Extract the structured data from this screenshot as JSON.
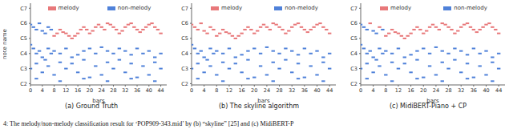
{
  "chart_data": [
    {
      "type": "scatter",
      "title": "(a) Ground Truth",
      "x_label": "bars",
      "y_label": "note name",
      "xlim": [
        0,
        46
      ],
      "xticks": [
        0,
        4,
        8,
        12,
        16,
        20,
        24,
        28,
        32,
        36,
        40,
        44
      ],
      "ylim": [
        35,
        100
      ],
      "yticks": [
        {
          "value": 36,
          "label": "C2"
        },
        {
          "value": 48,
          "label": "C3"
        },
        {
          "value": 60,
          "label": "C4"
        },
        {
          "value": 72,
          "label": "C5"
        },
        {
          "value": 84,
          "label": "C6"
        },
        {
          "value": 96,
          "label": "C7"
        }
      ],
      "grid": false,
      "legend": "top",
      "series": [
        {
          "name": "melody",
          "color": "#e8787a",
          "marker": "dash",
          "x": [
            8,
            9,
            10,
            11,
            12,
            13,
            14,
            15,
            16,
            17,
            18,
            19,
            20,
            21,
            22,
            23,
            24,
            25,
            26,
            27,
            28,
            29,
            30,
            31,
            32,
            33,
            34,
            35,
            36,
            37,
            38,
            39,
            40,
            41,
            42,
            43,
            44
          ],
          "values": [
            74,
            76,
            79,
            77,
            76,
            74,
            72,
            74,
            76,
            79,
            81,
            79,
            76,
            78,
            81,
            83,
            81,
            79,
            84,
            83,
            81,
            79,
            76,
            78,
            81,
            83,
            84,
            81,
            79,
            77,
            79,
            81,
            83,
            84,
            81,
            79,
            76
          ]
        },
        {
          "name": "non-melody",
          "color": "#4f81d9",
          "marker": "dash",
          "x": [
            0,
            1,
            2,
            3,
            4,
            5,
            6,
            7,
            0,
            1,
            2,
            3,
            4,
            5,
            6,
            7,
            8,
            10,
            12,
            14,
            16,
            18,
            20,
            22,
            24,
            26,
            28,
            30,
            32,
            34,
            36,
            38,
            40,
            42,
            44,
            0,
            4,
            8,
            12,
            16,
            20,
            24,
            28,
            32,
            36,
            40,
            44,
            2,
            6,
            10,
            14,
            18,
            22,
            26,
            30,
            34,
            38,
            42,
            2,
            10,
            18,
            26,
            34,
            42
          ],
          "values": [
            83,
            81,
            79,
            84,
            78,
            76,
            81,
            79,
            67,
            64,
            60,
            62,
            57,
            55,
            64,
            60,
            62,
            60,
            64,
            57,
            59,
            62,
            64,
            60,
            65,
            62,
            60,
            64,
            62,
            59,
            64,
            60,
            62,
            57,
            60,
            48,
            45,
            43,
            48,
            45,
            41,
            43,
            48,
            45,
            41,
            43,
            48,
            52,
            50,
            53,
            52,
            55,
            50,
            53,
            55,
            52,
            50,
            53,
            40,
            38,
            40,
            38,
            40,
            38
          ]
        }
      ]
    },
    {
      "type": "scatter",
      "title": "(b) The skyline algorithm",
      "x_label": "bars",
      "xlim": [
        0,
        46
      ],
      "xticks": [
        0,
        4,
        8,
        12,
        16,
        20,
        24,
        28,
        32,
        36,
        40,
        44
      ],
      "ylim": [
        35,
        100
      ],
      "yticks": [
        {
          "value": 36,
          "label": "C2"
        },
        {
          "value": 48,
          "label": "C3"
        },
        {
          "value": 60,
          "label": "C4"
        },
        {
          "value": 72,
          "label": "C5"
        },
        {
          "value": 84,
          "label": "C6"
        },
        {
          "value": 96,
          "label": "C7"
        }
      ],
      "grid": false,
      "legend": "top",
      "series": [
        {
          "name": "melody",
          "color": "#e8787a",
          "marker": "dash",
          "x": [
            0,
            1,
            2,
            3,
            4,
            5,
            6,
            7,
            8,
            9,
            10,
            11,
            12,
            13,
            14,
            15,
            16,
            17,
            18,
            19,
            20,
            21,
            22,
            23,
            24,
            25,
            26,
            27,
            28,
            29,
            30,
            31,
            32,
            33,
            34,
            35,
            36,
            37,
            38,
            39,
            40,
            41,
            42,
            43,
            44
          ],
          "values": [
            83,
            81,
            79,
            84,
            78,
            76,
            81,
            79,
            74,
            76,
            79,
            77,
            76,
            74,
            72,
            74,
            76,
            79,
            81,
            79,
            76,
            78,
            81,
            83,
            81,
            79,
            84,
            83,
            81,
            79,
            76,
            78,
            81,
            83,
            84,
            81,
            79,
            77,
            79,
            81,
            83,
            84,
            81,
            79,
            76
          ]
        },
        {
          "name": "non-melody",
          "color": "#4f81d9",
          "marker": "dash",
          "x": [
            0,
            1,
            2,
            3,
            4,
            5,
            6,
            7,
            8,
            10,
            12,
            14,
            16,
            18,
            20,
            22,
            24,
            26,
            28,
            30,
            32,
            34,
            36,
            38,
            40,
            42,
            44,
            0,
            4,
            8,
            12,
            16,
            20,
            24,
            28,
            32,
            36,
            40,
            44,
            2,
            6,
            10,
            14,
            18,
            22,
            26,
            30,
            34,
            38,
            42,
            2,
            10,
            18,
            26,
            34,
            42
          ],
          "values": [
            67,
            64,
            60,
            62,
            57,
            55,
            64,
            60,
            62,
            60,
            64,
            57,
            59,
            62,
            64,
            60,
            65,
            62,
            60,
            64,
            62,
            59,
            64,
            60,
            62,
            57,
            60,
            48,
            45,
            43,
            48,
            45,
            41,
            43,
            48,
            45,
            41,
            43,
            48,
            52,
            50,
            53,
            52,
            55,
            50,
            53,
            55,
            52,
            50,
            53,
            40,
            38,
            40,
            38,
            40,
            38
          ]
        }
      ]
    },
    {
      "type": "scatter",
      "title": "(c) MidiBERT-Piano + CP",
      "x_label": "bars",
      "xlim": [
        0,
        46
      ],
      "xticks": [
        0,
        4,
        8,
        12,
        16,
        20,
        24,
        28,
        32,
        36,
        40,
        44
      ],
      "ylim": [
        35,
        100
      ],
      "yticks": [
        {
          "value": 36,
          "label": "C2"
        },
        {
          "value": 48,
          "label": "C3"
        },
        {
          "value": 60,
          "label": "C4"
        },
        {
          "value": 72,
          "label": "C5"
        },
        {
          "value": 84,
          "label": "C6"
        },
        {
          "value": 96,
          "label": "C7"
        }
      ],
      "grid": false,
      "legend": "top",
      "series": [
        {
          "name": "melody",
          "color": "#e8787a",
          "marker": "dash",
          "x": [
            3,
            6,
            8,
            9,
            10,
            11,
            12,
            13,
            14,
            15,
            16,
            17,
            18,
            19,
            20,
            21,
            22,
            23,
            24,
            25,
            26,
            27,
            28,
            29,
            30,
            31,
            32,
            33,
            34,
            35,
            36,
            37,
            38,
            39,
            40,
            41,
            42,
            43,
            44
          ],
          "values": [
            84,
            81,
            74,
            76,
            79,
            77,
            76,
            74,
            72,
            74,
            76,
            79,
            81,
            79,
            76,
            78,
            81,
            83,
            81,
            79,
            84,
            83,
            81,
            79,
            76,
            78,
            81,
            83,
            84,
            81,
            79,
            77,
            79,
            81,
            83,
            84,
            81,
            79,
            76
          ]
        },
        {
          "name": "non-melody",
          "color": "#4f81d9",
          "marker": "dash",
          "x": [
            0,
            1,
            2,
            4,
            5,
            7,
            0,
            1,
            2,
            3,
            4,
            5,
            6,
            7,
            8,
            10,
            12,
            14,
            16,
            18,
            20,
            22,
            24,
            26,
            28,
            30,
            32,
            34,
            36,
            38,
            40,
            42,
            44,
            0,
            4,
            8,
            12,
            16,
            20,
            24,
            28,
            32,
            36,
            40,
            44,
            2,
            6,
            10,
            14,
            18,
            22,
            26,
            30,
            34,
            38,
            42,
            2,
            10,
            18,
            26,
            34,
            42
          ],
          "values": [
            83,
            81,
            79,
            78,
            76,
            79,
            67,
            64,
            60,
            62,
            57,
            55,
            64,
            60,
            62,
            60,
            64,
            57,
            59,
            62,
            64,
            60,
            65,
            62,
            60,
            64,
            62,
            59,
            64,
            60,
            62,
            57,
            60,
            48,
            45,
            43,
            48,
            45,
            41,
            43,
            48,
            45,
            41,
            43,
            48,
            52,
            50,
            53,
            52,
            55,
            50,
            53,
            55,
            52,
            50,
            53,
            40,
            38,
            40,
            38,
            40,
            38
          ]
        }
      ]
    }
  ],
  "caption": "4: The melody/non-melody classification result for ‘POP909-343.mid’ by (b) “skyline” [25] and (c) MidiBERT-P"
}
